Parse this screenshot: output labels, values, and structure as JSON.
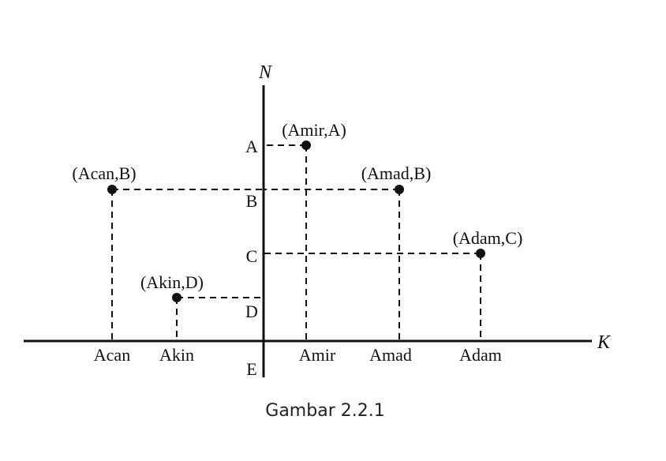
{
  "diagram": {
    "vertical_axis_label": "N",
    "horizontal_axis_label": "K",
    "y_ticks": [
      "A",
      "B",
      "C",
      "D",
      "E"
    ],
    "x_ticks": [
      "Acan",
      "Akin",
      "Amir",
      "Amad",
      "Adam"
    ],
    "points": [
      {
        "label": "(Amir,A)",
        "x": "Amir",
        "y": "A"
      },
      {
        "label": "(Acan,B)",
        "x": "Acan",
        "y": "B"
      },
      {
        "label": "(Amad,B)",
        "x": "Amad",
        "y": "B"
      },
      {
        "label": "(Adam,C)",
        "x": "Adam",
        "y": "C"
      },
      {
        "label": "(Akin,D)",
        "x": "Akin",
        "y": "D"
      }
    ],
    "caption": "Gambar 2.2.1",
    "ink_color": "#111111"
  }
}
